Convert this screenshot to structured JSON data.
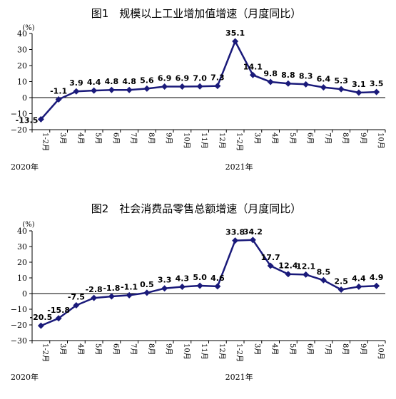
{
  "chart_data": [
    {
      "type": "line",
      "title": "图1　规模以上工业增加值增速（月度同比）",
      "ylabel": "(%)",
      "ylim": [
        -20,
        40
      ],
      "yticks": [
        -20,
        -10,
        0,
        10,
        20,
        30,
        40
      ],
      "yticklabels": [
        "−20",
        "−10",
        "0",
        "10",
        "20",
        "30",
        "40"
      ],
      "categories": [
        "1-2月",
        "3月",
        "4月",
        "5月",
        "6月",
        "7月",
        "8月",
        "9月",
        "10月",
        "11月",
        "12月",
        "1-2月",
        "3月",
        "4月",
        "5月",
        "6月",
        "7月",
        "8月",
        "9月",
        "10月"
      ],
      "values": [
        -13.5,
        -1.1,
        3.9,
        4.4,
        4.8,
        4.8,
        5.6,
        6.9,
        6.9,
        7.0,
        7.3,
        35.1,
        14.1,
        9.8,
        8.8,
        8.3,
        6.4,
        5.3,
        3.1,
        3.5
      ],
      "labels": [
        "-13.5",
        "-1.1",
        "3.9",
        "4.4",
        "4.8",
        "4.8",
        "5.6",
        "6.9",
        "6.9",
        "7.0",
        "7.3",
        "35.1",
        "14.1",
        "9.8",
        "8.8",
        "8.3",
        "6.4",
        "5.3",
        "3.1",
        "3.5"
      ],
      "years": [
        {
          "label": "2020年",
          "index": 0
        },
        {
          "label": "2021年",
          "index": 11
        }
      ],
      "line_color": "#1a1a7a",
      "grid": false
    },
    {
      "type": "line",
      "title": "图2　社会消费品零售总额增速（月度同比）",
      "ylabel": "(%)",
      "ylim": [
        -30,
        40
      ],
      "yticks": [
        -30,
        -20,
        -10,
        0,
        10,
        20,
        30,
        40
      ],
      "yticklabels": [
        "−30",
        "−20",
        "−10",
        "0",
        "10",
        "20",
        "30",
        "40"
      ],
      "categories": [
        "1-2月",
        "3月",
        "4月",
        "5月",
        "6月",
        "7月",
        "8月",
        "9月",
        "10月",
        "11月",
        "12月",
        "1-2月",
        "3月",
        "4月",
        "5月",
        "6月",
        "7月",
        "8月",
        "9月",
        "10月"
      ],
      "values": [
        -20.5,
        -15.8,
        -7.5,
        -2.8,
        -1.8,
        -1.1,
        0.5,
        3.3,
        4.3,
        5.0,
        4.6,
        33.8,
        34.2,
        17.7,
        12.4,
        12.1,
        8.5,
        2.5,
        4.4,
        4.9
      ],
      "labels": [
        "-20.5",
        "-15.8",
        "-7.5",
        "-2.8",
        "-1.8",
        "-1.1",
        "0.5",
        "3.3",
        "4.3",
        "5.0",
        "4.6",
        "33.8",
        "34.2",
        "17.7",
        "12.4",
        "12.1",
        "8.5",
        "2.5",
        "4.4",
        "4.9"
      ],
      "years": [
        {
          "label": "2020年",
          "index": 0
        },
        {
          "label": "2021年",
          "index": 11
        }
      ],
      "line_color": "#1a1a7a",
      "grid": false
    }
  ]
}
